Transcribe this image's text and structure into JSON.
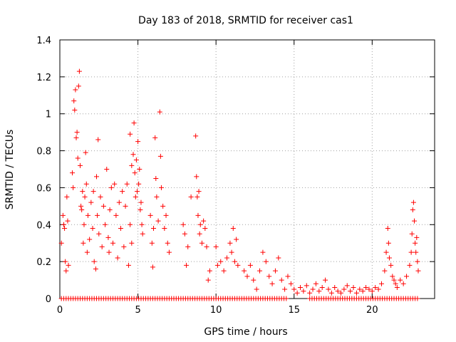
{
  "chart_data": {
    "type": "scatter",
    "title": "Day 183 of 2018, SRMTID for receiver cas1",
    "xlabel": "GPS time / hours",
    "ylabel": "SRMTID / TECUs",
    "xlim": [
      0,
      24
    ],
    "ylim": [
      0,
      1.4
    ],
    "x_ticks": [
      0,
      5,
      10,
      15,
      20
    ],
    "x_tick_labels": [
      "0",
      "5",
      "10",
      "15",
      "20"
    ],
    "y_ticks": [
      0,
      0.2,
      0.4,
      0.6,
      0.8,
      1.0,
      1.2,
      1.4
    ],
    "y_tick_labels": [
      "0",
      "0.2",
      "0.4",
      "0.6",
      "0.8",
      "1",
      "1.2",
      "1.4"
    ],
    "grid": true,
    "marker": "plus",
    "series": [
      {
        "name": "SRMTID",
        "color": "#ff0000",
        "points": [
          [
            0.1,
            0.3
          ],
          [
            0.2,
            0.45
          ],
          [
            0.25,
            0.4
          ],
          [
            0.3,
            0.38
          ],
          [
            0.35,
            0.2
          ],
          [
            0.4,
            0.15
          ],
          [
            0.45,
            0.55
          ],
          [
            0.5,
            0.42
          ],
          [
            0.55,
            0.18
          ],
          [
            0.8,
            0.68
          ],
          [
            0.85,
            0.6
          ],
          [
            0.9,
            1.07
          ],
          [
            0.95,
            1.02
          ],
          [
            1.0,
            1.13
          ],
          [
            1.05,
            0.87
          ],
          [
            1.1,
            0.9
          ],
          [
            1.15,
            0.76
          ],
          [
            1.2,
            1.15
          ],
          [
            1.25,
            1.23
          ],
          [
            1.3,
            0.72
          ],
          [
            1.35,
            0.5
          ],
          [
            1.4,
            0.48
          ],
          [
            1.45,
            0.58
          ],
          [
            1.5,
            0.3
          ],
          [
            1.55,
            0.4
          ],
          [
            1.6,
            0.55
          ],
          [
            1.65,
            0.79
          ],
          [
            1.7,
            0.62
          ],
          [
            1.75,
            0.25
          ],
          [
            1.8,
            0.45
          ],
          [
            1.9,
            0.32
          ],
          [
            2.0,
            0.52
          ],
          [
            2.1,
            0.38
          ],
          [
            2.15,
            0.58
          ],
          [
            2.2,
            0.2
          ],
          [
            2.3,
            0.16
          ],
          [
            2.35,
            0.66
          ],
          [
            2.4,
            0.45
          ],
          [
            2.45,
            0.86
          ],
          [
            2.5,
            0.35
          ],
          [
            2.6,
            0.55
          ],
          [
            2.7,
            0.28
          ],
          [
            2.8,
            0.5
          ],
          [
            2.9,
            0.4
          ],
          [
            3.0,
            0.7
          ],
          [
            3.1,
            0.33
          ],
          [
            3.15,
            0.25
          ],
          [
            3.2,
            0.48
          ],
          [
            3.3,
            0.6
          ],
          [
            3.4,
            0.3
          ],
          [
            3.5,
            0.62
          ],
          [
            3.6,
            0.45
          ],
          [
            3.7,
            0.22
          ],
          [
            3.8,
            0.52
          ],
          [
            3.9,
            0.38
          ],
          [
            4.0,
            0.58
          ],
          [
            4.1,
            0.28
          ],
          [
            4.2,
            0.5
          ],
          [
            4.3,
            0.62
          ],
          [
            4.4,
            0.18
          ],
          [
            4.5,
            0.4
          ],
          [
            4.6,
            0.3
          ],
          [
            4.5,
            0.89
          ],
          [
            4.6,
            0.72
          ],
          [
            4.7,
            0.78
          ],
          [
            4.75,
            0.95
          ],
          [
            4.8,
            0.68
          ],
          [
            4.85,
            0.55
          ],
          [
            4.9,
            0.75
          ],
          [
            4.95,
            0.58
          ],
          [
            5.0,
            0.85
          ],
          [
            5.05,
            0.62
          ],
          [
            5.1,
            0.7
          ],
          [
            5.15,
            0.48
          ],
          [
            5.2,
            0.52
          ],
          [
            5.25,
            0.4
          ],
          [
            5.3,
            0.35
          ],
          [
            5.8,
            0.45
          ],
          [
            5.9,
            0.3
          ],
          [
            5.95,
            0.17
          ],
          [
            6.0,
            0.38
          ],
          [
            6.1,
            0.87
          ],
          [
            6.15,
            0.65
          ],
          [
            6.2,
            0.55
          ],
          [
            6.3,
            0.42
          ],
          [
            6.4,
            1.01
          ],
          [
            6.45,
            0.77
          ],
          [
            6.5,
            0.6
          ],
          [
            6.6,
            0.5
          ],
          [
            6.7,
            0.38
          ],
          [
            6.8,
            0.45
          ],
          [
            6.9,
            0.3
          ],
          [
            7.0,
            0.25
          ],
          [
            7.9,
            0.4
          ],
          [
            8.0,
            0.35
          ],
          [
            8.1,
            0.18
          ],
          [
            8.2,
            0.28
          ],
          [
            8.4,
            0.55
          ],
          [
            8.7,
            0.88
          ],
          [
            8.75,
            0.66
          ],
          [
            8.8,
            0.55
          ],
          [
            8.85,
            0.45
          ],
          [
            8.9,
            0.58
          ],
          [
            8.95,
            0.35
          ],
          [
            9.0,
            0.4
          ],
          [
            9.1,
            0.3
          ],
          [
            9.2,
            0.42
          ],
          [
            9.3,
            0.38
          ],
          [
            9.4,
            0.28
          ],
          [
            9.5,
            0.1
          ],
          [
            9.6,
            0.15
          ],
          [
            10.0,
            0.28
          ],
          [
            10.1,
            0.18
          ],
          [
            10.3,
            0.2
          ],
          [
            10.5,
            0.15
          ],
          [
            10.7,
            0.22
          ],
          [
            10.9,
            0.3
          ],
          [
            11.0,
            0.25
          ],
          [
            11.1,
            0.38
          ],
          [
            11.2,
            0.2
          ],
          [
            11.3,
            0.32
          ],
          [
            11.4,
            0.18
          ],
          [
            11.8,
            0.15
          ],
          [
            12.0,
            0.12
          ],
          [
            12.2,
            0.18
          ],
          [
            12.4,
            0.1
          ],
          [
            12.6,
            0.05
          ],
          [
            12.8,
            0.15
          ],
          [
            13.0,
            0.25
          ],
          [
            13.2,
            0.2
          ],
          [
            13.4,
            0.12
          ],
          [
            13.6,
            0.08
          ],
          [
            13.8,
            0.15
          ],
          [
            14.0,
            0.22
          ],
          [
            14.2,
            0.1
          ],
          [
            14.4,
            0.05
          ],
          [
            14.6,
            0.12
          ],
          [
            14.8,
            0.08
          ],
          [
            15.0,
            0.05
          ],
          [
            15.2,
            0.03
          ],
          [
            15.4,
            0.06
          ],
          [
            15.6,
            0.04
          ],
          [
            15.8,
            0.07
          ],
          [
            16.0,
            0.03
          ],
          [
            16.2,
            0.05
          ],
          [
            16.4,
            0.08
          ],
          [
            16.6,
            0.04
          ],
          [
            16.8,
            0.06
          ],
          [
            17.0,
            0.1
          ],
          [
            17.2,
            0.05
          ],
          [
            17.4,
            0.03
          ],
          [
            17.6,
            0.06
          ],
          [
            17.8,
            0.04
          ],
          [
            18.0,
            0.03
          ],
          [
            18.2,
            0.05
          ],
          [
            18.4,
            0.07
          ],
          [
            18.6,
            0.04
          ],
          [
            18.8,
            0.06
          ],
          [
            19.0,
            0.03
          ],
          [
            19.2,
            0.05
          ],
          [
            19.4,
            0.04
          ],
          [
            19.6,
            0.06
          ],
          [
            19.8,
            0.05
          ],
          [
            20.0,
            0.04
          ],
          [
            20.2,
            0.06
          ],
          [
            20.4,
            0.05
          ],
          [
            20.6,
            0.08
          ],
          [
            20.8,
            0.15
          ],
          [
            20.9,
            0.25
          ],
          [
            21.0,
            0.38
          ],
          [
            21.05,
            0.3
          ],
          [
            21.1,
            0.22
          ],
          [
            21.2,
            0.18
          ],
          [
            21.3,
            0.12
          ],
          [
            21.4,
            0.1
          ],
          [
            21.5,
            0.08
          ],
          [
            21.6,
            0.06
          ],
          [
            21.8,
            0.1
          ],
          [
            22.0,
            0.08
          ],
          [
            22.2,
            0.12
          ],
          [
            22.4,
            0.18
          ],
          [
            22.5,
            0.25
          ],
          [
            22.55,
            0.35
          ],
          [
            22.6,
            0.48
          ],
          [
            22.65,
            0.52
          ],
          [
            22.7,
            0.42
          ],
          [
            22.75,
            0.3
          ],
          [
            22.8,
            0.25
          ],
          [
            22.85,
            0.33
          ],
          [
            22.9,
            0.2
          ],
          [
            22.95,
            0.15
          ]
        ]
      }
    ],
    "baseline_series": {
      "name": "zero-values",
      "y": 0,
      "x_ranges": [
        [
          0.1,
          14.6
        ],
        [
          16.0,
          22.9
        ]
      ],
      "x_step": 0.15
    }
  }
}
